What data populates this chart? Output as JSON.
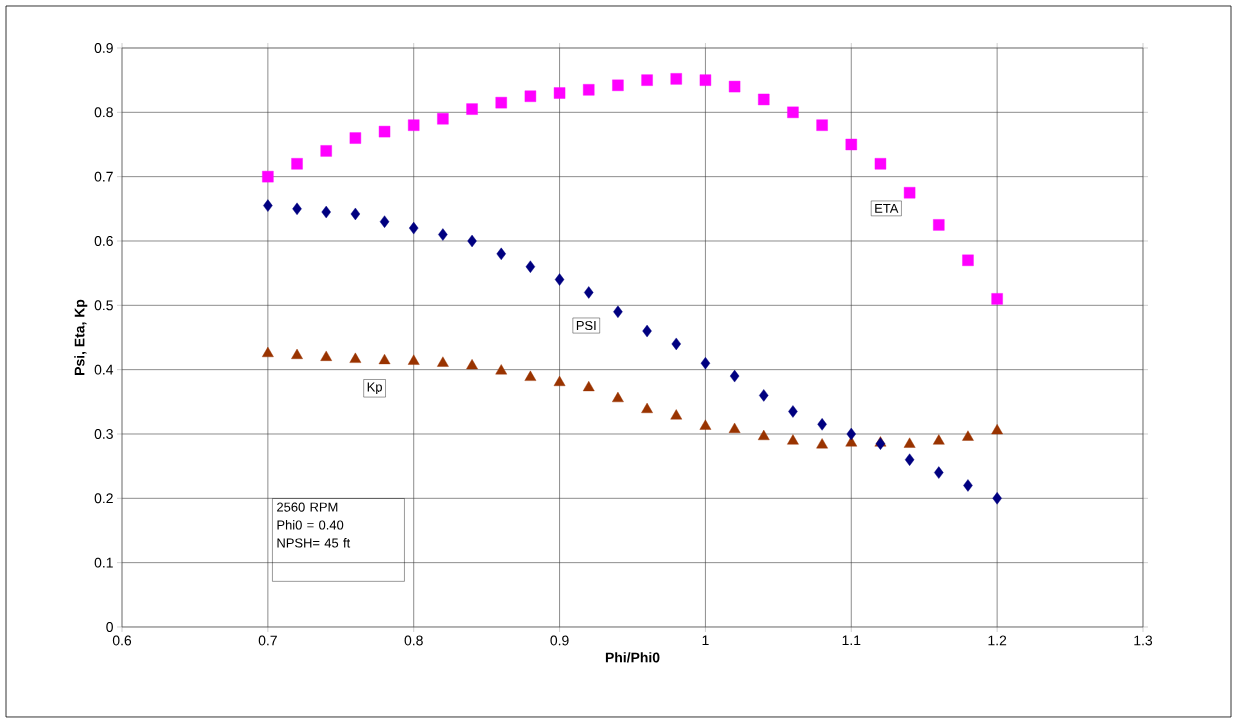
{
  "chart_data": {
    "type": "scatter",
    "xlabel": "Phi/Phi0",
    "ylabel": "Psi, Eta, Kp",
    "x": [
      0.7,
      0.72,
      0.74,
      0.76,
      0.78,
      0.8,
      0.82,
      0.84,
      0.86,
      0.88,
      0.9,
      0.92,
      0.94,
      0.96,
      0.98,
      1.0,
      1.02,
      1.04,
      1.06,
      1.08,
      1.1,
      1.12,
      1.14,
      1.16,
      1.18,
      1.2
    ],
    "series": [
      {
        "name": "ETA",
        "color": "#ff00ff",
        "marker": "square",
        "values": [
          0.7,
          0.72,
          0.74,
          0.76,
          0.77,
          0.78,
          0.79,
          0.805,
          0.815,
          0.825,
          0.83,
          0.835,
          0.842,
          0.85,
          0.852,
          0.85,
          0.84,
          0.82,
          0.8,
          0.78,
          0.75,
          0.72,
          0.675,
          0.625,
          0.57,
          0.51
        ]
      },
      {
        "name": "PSI",
        "color": "#000080",
        "marker": "diamond",
        "values": [
          0.655,
          0.65,
          0.645,
          0.642,
          0.63,
          0.62,
          0.61,
          0.6,
          0.58,
          0.56,
          0.54,
          0.52,
          0.49,
          0.46,
          0.44,
          0.41,
          0.39,
          0.36,
          0.335,
          0.315,
          0.3,
          0.285,
          0.26,
          0.24,
          0.22,
          0.2
        ]
      },
      {
        "name": "Kp",
        "color": "#993300",
        "marker": "triangle",
        "values": [
          0.425,
          0.422,
          0.419,
          0.416,
          0.414,
          0.413,
          0.41,
          0.406,
          0.398,
          0.388,
          0.38,
          0.372,
          0.355,
          0.338,
          0.328,
          0.312,
          0.307,
          0.296,
          0.289,
          0.283,
          0.286,
          0.286,
          0.284,
          0.289,
          0.295,
          0.305
        ]
      }
    ],
    "annotations": [
      "2560 RPM",
      "Phi0 = 0.40",
      "NPSH= 45 ft"
    ],
    "xlim": [
      0.6,
      1.3
    ],
    "xticks": [
      0.6,
      0.7,
      0.8,
      0.9,
      1,
      1.1,
      1.2,
      1.3
    ],
    "ylim": [
      0,
      0.9
    ],
    "yticks": [
      0,
      0.1,
      0.2,
      0.3,
      0.4,
      0.5,
      0.6,
      0.7,
      0.8,
      0.9
    ],
    "grid": true,
    "legend": false
  }
}
